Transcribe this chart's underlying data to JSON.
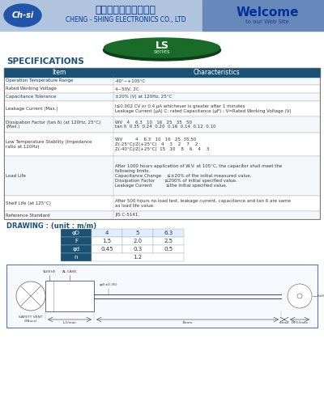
{
  "bg_color": "#ffffff",
  "header_bg": "#b0c4de",
  "header_text_color": "#003366",
  "oval_color": "#1a6b2a",
  "oval_shadow": "#0d4018",
  "table_header_bg": "#1a5276",
  "table_header_color": "#ffffff",
  "drawing_table_headers": [
    "φD",
    "4",
    "5",
    "6.3"
  ],
  "drawing_table_rows": [
    [
      "F",
      "1.5",
      "2.0",
      "2.5"
    ],
    [
      "φd",
      "0.45",
      "0.3",
      "0.5"
    ],
    [
      "n",
      "1.2",
      "",
      ""
    ]
  ]
}
